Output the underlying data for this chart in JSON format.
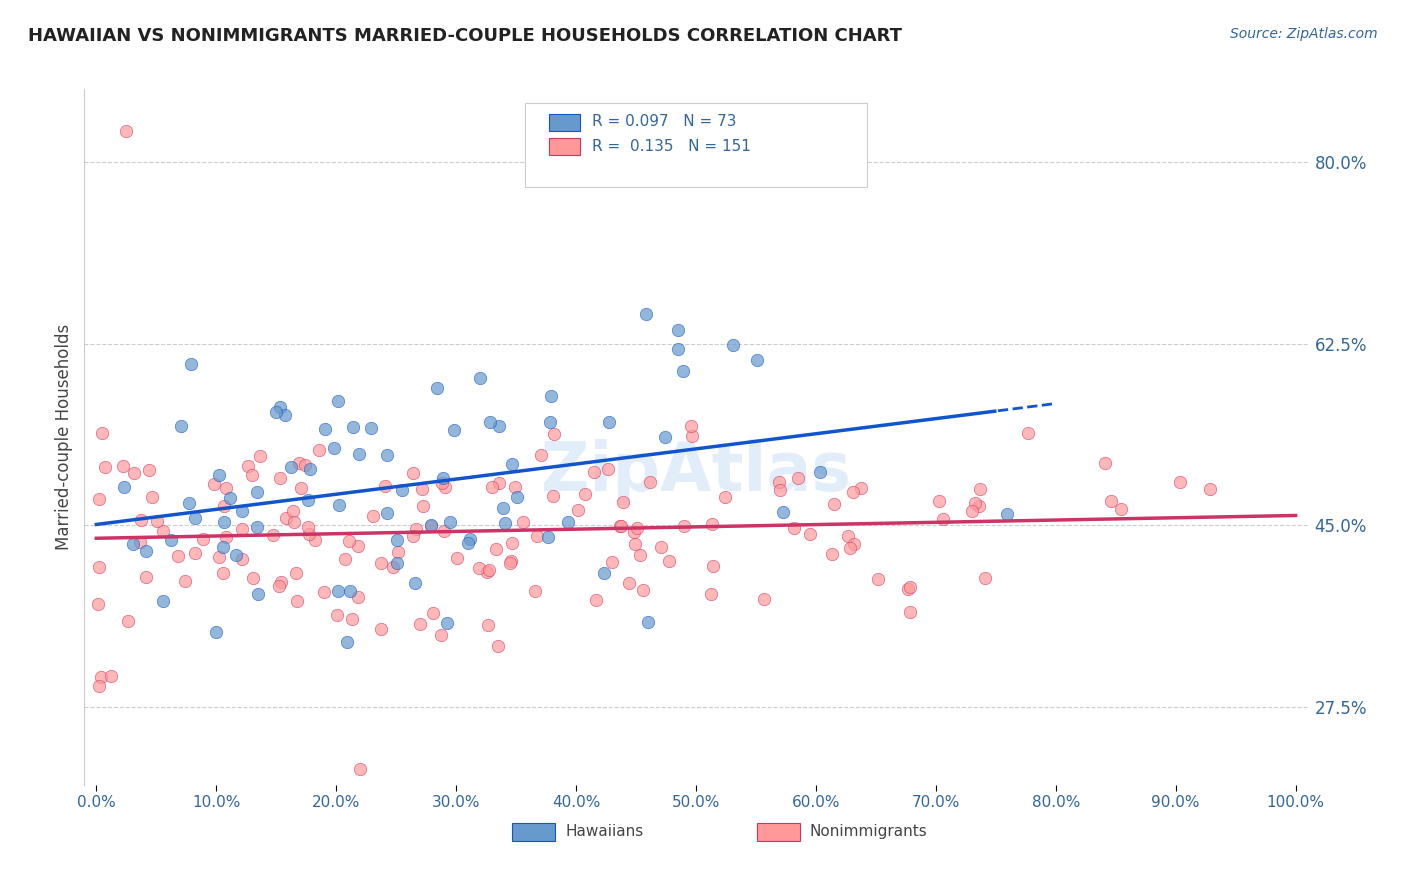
{
  "title": "HAWAIIAN VS NONIMMIGRANTS MARRIED-COUPLE HOUSEHOLDS CORRELATION CHART",
  "source": "Source: ZipAtlas.com",
  "ylabel": "Married-couple Households",
  "xlim": [
    0,
    100
  ],
  "ylim": [
    20,
    87
  ],
  "yticks": [
    27.5,
    45.0,
    62.5,
    80.0
  ],
  "xticks": [
    0,
    10,
    20,
    30,
    40,
    50,
    60,
    70,
    80,
    90,
    100
  ],
  "hawaiians_R": 0.097,
  "hawaiians_N": 73,
  "nonimmigrants_R": 0.135,
  "nonimmigrants_N": 151,
  "hawaiians_color": "#6699CC",
  "nonimmigrants_color": "#FF9999",
  "trendline_hawaiians_color": "#1155CC",
  "trendline_nonimmigrants_color": "#CC3366",
  "background_color": "#FFFFFF",
  "grid_color": "#CCCCCC",
  "title_color": "#222222",
  "axis_label_color": "#336699",
  "watermark_color": "#AACCEE",
  "trendline_dash_start": 75,
  "hawaiians_x_max": 80,
  "scatter_size": 80,
  "scatter_alpha": 0.7,
  "scatter_linewidth": 0.5,
  "trendline_linewidth": 2.5
}
